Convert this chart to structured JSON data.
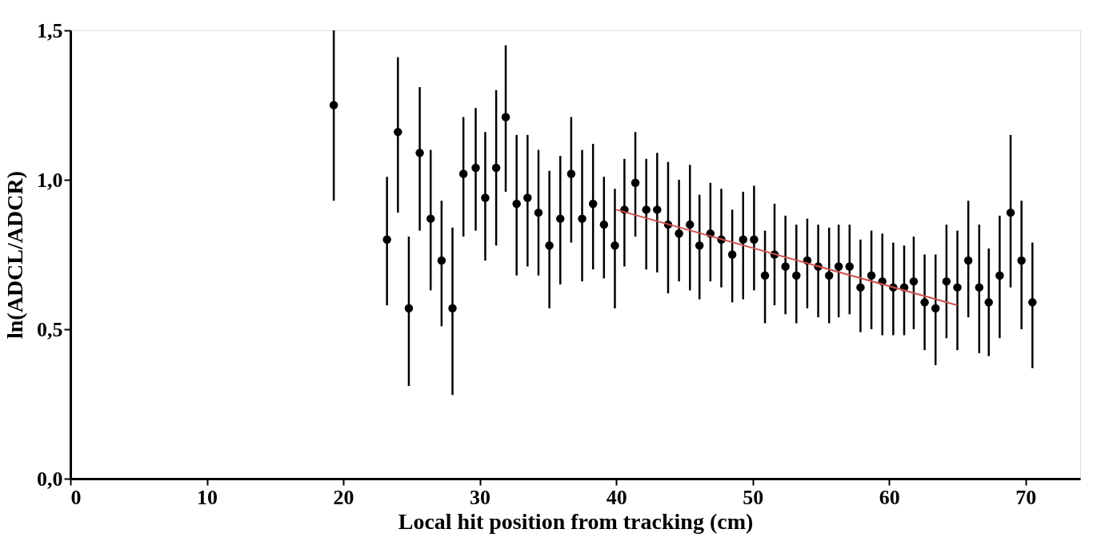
{
  "chart_data": {
    "type": "scatter",
    "xlabel": "Local hit position from tracking (cm)",
    "ylabel": "ln(ADCL/ADCR)",
    "xlim": [
      0,
      74
    ],
    "ylim": [
      0,
      1.5
    ],
    "xticks": [
      0,
      10,
      20,
      30,
      40,
      50,
      60,
      70
    ],
    "yticks": [
      {
        "value": 0,
        "label": "0,0"
      },
      {
        "value": 0.5,
        "label": "0,5"
      },
      {
        "value": 1,
        "label": "1,0"
      },
      {
        "value": 1.5,
        "label": "1,5"
      }
    ],
    "grid": false,
    "marker": "circle",
    "series": [
      {
        "color": "#000000",
        "x": [
          19.3,
          23.2,
          24.0,
          24.8,
          25.6,
          26.4,
          27.2,
          28.0,
          28.8,
          29.7,
          30.4,
          31.2,
          31.9,
          32.7,
          33.5,
          34.3,
          35.1,
          35.9,
          36.7,
          37.5,
          38.3,
          39.1,
          39.9,
          40.6,
          41.4,
          42.2,
          43.0,
          43.8,
          44.6,
          45.4,
          46.1,
          46.9,
          47.7,
          48.5,
          49.3,
          50.1,
          50.9,
          51.6,
          52.4,
          53.2,
          54.0,
          54.8,
          55.6,
          56.3,
          57.1,
          57.9,
          58.7,
          59.5,
          60.3,
          61.1,
          61.8,
          62.6,
          63.4,
          64.2,
          65.0,
          65.8,
          66.6,
          67.3,
          68.1,
          68.9,
          69.7,
          70.5
        ],
        "values": [
          1.25,
          0.8,
          1.16,
          0.57,
          1.09,
          0.87,
          0.73,
          0.57,
          1.02,
          1.04,
          0.94,
          1.04,
          1.21,
          0.92,
          0.94,
          0.89,
          0.78,
          0.87,
          1.02,
          0.87,
          0.92,
          0.85,
          0.78,
          0.9,
          0.99,
          0.9,
          0.9,
          0.85,
          0.82,
          0.85,
          0.78,
          0.82,
          0.8,
          0.75,
          0.8,
          0.8,
          0.68,
          0.75,
          0.71,
          0.68,
          0.73,
          0.71,
          0.68,
          0.71,
          0.71,
          0.64,
          0.68,
          0.66,
          0.64,
          0.64,
          0.66,
          0.59,
          0.57,
          0.66,
          0.64,
          0.73,
          0.64,
          0.59,
          0.68,
          0.89,
          0.73,
          0.59
        ],
        "errors": [
          [
            0.93,
            1.5
          ],
          [
            0.58,
            1.01
          ],
          [
            0.89,
            1.41
          ],
          [
            0.31,
            0.81
          ],
          [
            0.83,
            1.31
          ],
          [
            0.63,
            1.1
          ],
          [
            0.51,
            0.93
          ],
          [
            0.28,
            0.84
          ],
          [
            0.81,
            1.21
          ],
          [
            0.83,
            1.24
          ],
          [
            0.73,
            1.16
          ],
          [
            0.78,
            1.3
          ],
          [
            0.96,
            1.45
          ],
          [
            0.68,
            1.15
          ],
          [
            0.71,
            1.15
          ],
          [
            0.68,
            1.1
          ],
          [
            0.57,
            1.03
          ],
          [
            0.65,
            1.08
          ],
          [
            0.79,
            1.21
          ],
          [
            0.66,
            1.1
          ],
          [
            0.7,
            1.12
          ],
          [
            0.67,
            1.01
          ],
          [
            0.57,
            0.97
          ],
          [
            0.71,
            1.07
          ],
          [
            0.81,
            1.16
          ],
          [
            0.7,
            1.07
          ],
          [
            0.69,
            1.09
          ],
          [
            0.62,
            1.06
          ],
          [
            0.66,
            1.0
          ],
          [
            0.63,
            1.05
          ],
          [
            0.6,
            0.95
          ],
          [
            0.66,
            0.99
          ],
          [
            0.64,
            0.97
          ],
          [
            0.59,
            0.9
          ],
          [
            0.6,
            0.96
          ],
          [
            0.63,
            0.98
          ],
          [
            0.52,
            0.83
          ],
          [
            0.58,
            0.92
          ],
          [
            0.55,
            0.88
          ],
          [
            0.52,
            0.85
          ],
          [
            0.57,
            0.87
          ],
          [
            0.54,
            0.85
          ],
          [
            0.52,
            0.84
          ],
          [
            0.54,
            0.85
          ],
          [
            0.55,
            0.85
          ],
          [
            0.49,
            0.8
          ],
          [
            0.5,
            0.83
          ],
          [
            0.48,
            0.82
          ],
          [
            0.48,
            0.79
          ],
          [
            0.48,
            0.78
          ],
          [
            0.5,
            0.81
          ],
          [
            0.43,
            0.75
          ],
          [
            0.38,
            0.75
          ],
          [
            0.47,
            0.85
          ],
          [
            0.43,
            0.83
          ],
          [
            0.54,
            0.93
          ],
          [
            0.42,
            0.85
          ],
          [
            0.41,
            0.77
          ],
          [
            0.47,
            0.88
          ],
          [
            0.64,
            1.15
          ],
          [
            0.5,
            0.93
          ],
          [
            0.37,
            0.79
          ]
        ]
      },
      {
        "type": "line",
        "color": "#d05050",
        "marker": "none",
        "x": [
          40,
          65
        ],
        "values": [
          0.9,
          0.58
        ]
      }
    ]
  }
}
